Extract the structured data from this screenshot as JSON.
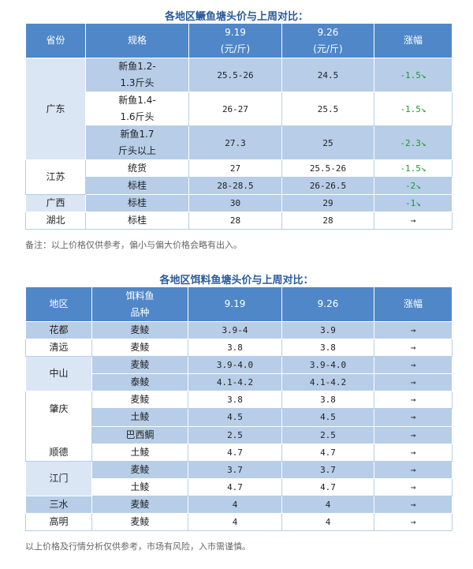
{
  "table1": {
    "title": "各地区鳜鱼塘头价与上周对比：",
    "headers": {
      "province": "省份",
      "spec": "规格",
      "d1_line1": "9.19",
      "d1_line2": "(元/斤)",
      "d2_line1": "9.26",
      "d2_line2": "(元/斤)",
      "change": "涨幅"
    },
    "rows": [
      {
        "province": "广东",
        "spec_line1": "新鱼1.2-",
        "spec_line2": "1.3斤头",
        "d1": "25.5-26",
        "d2": "24.5",
        "change": "-1.5↘"
      },
      {
        "province": "",
        "spec_line1": "新鱼1.4-",
        "spec_line2": "1.6斤头",
        "d1": "26-27",
        "d2": "25.5",
        "change": "-1.5↘"
      },
      {
        "province": "",
        "spec_line1": "新鱼1.7",
        "spec_line2": "斤头以上",
        "d1": "27.3",
        "d2": "25",
        "change": "-2.3↘"
      },
      {
        "province": "江苏",
        "spec_line1": "统货",
        "spec_line2": "",
        "d1": "27",
        "d2": "25.5-26",
        "change": "-1.5↘"
      },
      {
        "province": "",
        "spec_line1": "标桂",
        "spec_line2": "",
        "d1": "28-28.5",
        "d2": "26-26.5",
        "change": "-2↘"
      },
      {
        "province": "广西",
        "spec_line1": "标桂",
        "spec_line2": "",
        "d1": "30",
        "d2": "29",
        "change": "-1↘"
      },
      {
        "province": "湖北",
        "spec_line1": "标桂",
        "spec_line2": "",
        "d1": "28",
        "d2": "28",
        "change": "→"
      }
    ],
    "note": "备注：以上价格仅供参考，偏小与偏大价格会略有出入。"
  },
  "table2": {
    "title": "各地区饵料鱼塘头价与上周对比：",
    "headers": {
      "region": "地区",
      "species_line1": "饵料鱼",
      "species_line2": "品种",
      "d1": "9.19",
      "d2": "9.26",
      "change": "涨幅"
    },
    "rows": [
      {
        "region": "花都",
        "species": "麦鲮",
        "d1": "3.9-4",
        "d2": "3.9",
        "change": "→"
      },
      {
        "region": "清远",
        "species": "麦鲮",
        "d1": "3.8",
        "d2": "3.8",
        "change": "→"
      },
      {
        "region": "中山",
        "species": "麦鲮",
        "d1": "3.9-4.0",
        "d2": "3.9-4.0",
        "change": "→"
      },
      {
        "region": "",
        "species": "泰鲮",
        "d1": "4.1-4.2",
        "d2": "4.1-4.2",
        "change": "→"
      },
      {
        "region": "肇庆",
        "species": "麦鲮",
        "d1": "3.8",
        "d2": "3.8",
        "change": "→"
      },
      {
        "region": "",
        "species": "土鲮",
        "d1": "4.5",
        "d2": "4.5",
        "change": "→"
      },
      {
        "region": "",
        "species": "巴西鲷",
        "d1": "2.5",
        "d2": "2.5",
        "change": "→"
      },
      {
        "region": "顺德",
        "species": "土鲮",
        "d1": "4.7",
        "d2": "4.7",
        "change": "→"
      },
      {
        "region": "江门",
        "species": "麦鲮",
        "d1": "3.7",
        "d2": "3.7",
        "change": "→"
      },
      {
        "region": "",
        "species": "土鲮",
        "d1": "4.7",
        "d2": "4.7",
        "change": "→"
      },
      {
        "region": "三水",
        "species": "麦鲮",
        "d1": "4",
        "d2": "4",
        "change": "→"
      },
      {
        "region": "高明",
        "species": "麦鲮",
        "d1": "4",
        "d2": "4",
        "change": "→"
      }
    ],
    "note": "以上价格及行情分析仅供参考，市场有风险，入市需谨慎。"
  }
}
